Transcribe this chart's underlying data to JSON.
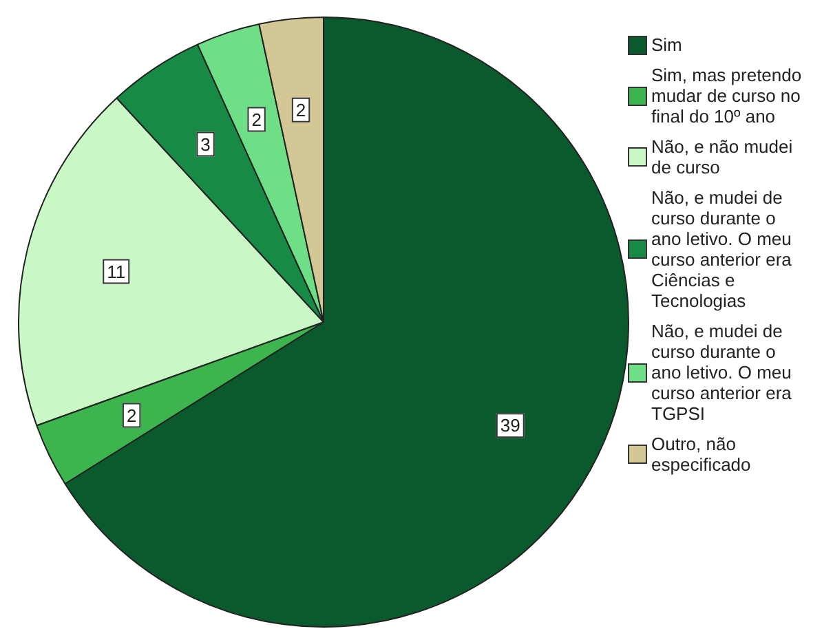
{
  "chart_data": {
    "type": "pie",
    "categories": [
      "Sim",
      "Sim, mas pretendo mudar de curso no final do 10º ano",
      "Não, e não mudei de curso",
      "Não, e mudei de curso durante o ano letivo. O meu curso anterior era Ciências e Tecnologias",
      "Não, e mudei de curso durante o ano letivo. O meu curso anterior era TGPSI",
      "Outro, não especificado"
    ],
    "values": [
      39,
      2,
      11,
      3,
      2,
      2
    ],
    "colors": [
      "#0b5a2d",
      "#3cb54f",
      "#c9f8c6",
      "#178a46",
      "#6ede87",
      "#d3c795"
    ],
    "data_labels": true,
    "legend": "right"
  }
}
